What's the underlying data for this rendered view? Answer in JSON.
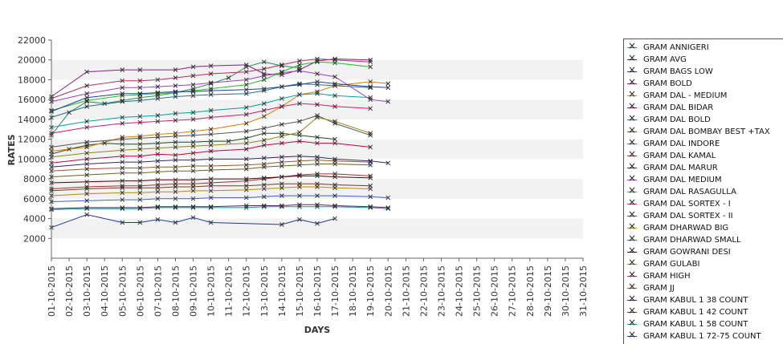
{
  "chart_data": {
    "type": "line",
    "xlabel": "DAYS",
    "ylabel": "RATES",
    "ylim": [
      0,
      22000
    ],
    "yticks": [
      2000,
      4000,
      6000,
      8000,
      10000,
      12000,
      14000,
      16000,
      18000,
      20000,
      22000
    ],
    "grid": "alternating horizontal bands",
    "legend_position": "right",
    "x": [
      "01-10-2015",
      "02-10-2015",
      "03-10-2015",
      "04-10-2015",
      "05-10-2015",
      "06-10-2015",
      "07-10-2015",
      "08-10-2015",
      "09-10-2015",
      "10-10-2015",
      "11-10-2015",
      "12-10-2015",
      "13-10-2015",
      "14-10-2015",
      "15-10-2015",
      "16-10-2015",
      "17-10-2015",
      "18-10-2015",
      "19-10-2015",
      "20-10-2015",
      "21-10-2015",
      "22-10-2015",
      "23-10-2015",
      "24-10-2015",
      "25-10-2015",
      "26-10-2015",
      "27-10-2015",
      "28-10-2015",
      "29-10-2015",
      "30-10-2015",
      "31-10-2015"
    ],
    "series": [
      {
        "name": "GRAM ANNIGERI",
        "color": "#2e8b57",
        "values": [
          12400,
          14700,
          15800,
          15600,
          15900,
          16200,
          16400,
          16700,
          17100,
          17600,
          18200,
          19300,
          19800,
          19400,
          19200,
          null,
          null,
          null,
          null,
          null,
          null,
          null,
          null,
          null,
          null,
          null,
          null,
          null,
          null,
          null,
          null
        ]
      },
      {
        "name": "GRAM AVG",
        "color": "#1b4d1b",
        "values": [
          10500,
          11000,
          11400,
          11600,
          11500,
          11500,
          11600,
          11700,
          11700,
          11800,
          11800,
          12100,
          12600,
          12600,
          12400,
          12200,
          12000,
          null,
          null,
          null,
          null,
          null,
          null,
          null,
          null,
          null,
          null,
          null,
          null,
          null,
          null
        ]
      },
      {
        "name": "GRAM BAGS LOW",
        "color": "#1f3b99",
        "values": [
          3100,
          null,
          4400,
          null,
          3600,
          3600,
          3900,
          3600,
          4100,
          3600,
          null,
          null,
          null,
          3400,
          3900,
          3500,
          4000,
          null,
          null,
          null,
          null,
          null,
          null,
          null,
          null,
          null,
          null,
          null,
          null,
          null,
          null
        ]
      },
      {
        "name": "GRAM BOLD",
        "color": "#8b1a8b",
        "values": [
          16300,
          null,
          18800,
          null,
          19000,
          19000,
          null,
          19000,
          19300,
          19400,
          null,
          19500,
          18600,
          18500,
          19000,
          19900,
          20100,
          null,
          20000,
          null,
          null,
          null,
          null,
          null,
          null,
          null,
          null,
          null,
          null,
          null,
          null
        ]
      },
      {
        "name": "GRAM DAL - MEDIUM",
        "color": "#e07a00",
        "values": [
          10800,
          null,
          11200,
          null,
          12200,
          12300,
          12500,
          12600,
          12800,
          13000,
          null,
          13600,
          14300,
          15300,
          16500,
          16800,
          17400,
          null,
          17800,
          17600,
          null,
          null,
          null,
          null,
          null,
          null,
          null,
          null,
          null,
          null,
          null
        ]
      },
      {
        "name": "GRAM DAL BIDAR",
        "color": "#c0003c",
        "values": [
          9600,
          null,
          10000,
          null,
          10300,
          10300,
          10500,
          10400,
          10600,
          10800,
          null,
          11000,
          11400,
          11600,
          11800,
          11600,
          11600,
          null,
          11200,
          null,
          null,
          null,
          null,
          null,
          null,
          null,
          null,
          null,
          null,
          null,
          null
        ]
      },
      {
        "name": "GRAM DAL BOLD",
        "color": "#1f6f8b",
        "values": [
          14200,
          null,
          15300,
          null,
          15800,
          15900,
          16100,
          16300,
          16400,
          16500,
          null,
          16600,
          16900,
          17300,
          17600,
          17500,
          17400,
          null,
          17200,
          null,
          null,
          null,
          null,
          null,
          null,
          null,
          null,
          null,
          null,
          null,
          null
        ]
      },
      {
        "name": "GRAM DAL BOMBAY BEST +TAX",
        "color": "#5a6b1a",
        "values": [
          8200,
          null,
          8400,
          null,
          8600,
          8600,
          8700,
          8800,
          8800,
          8900,
          null,
          9000,
          9200,
          9300,
          9400,
          9500,
          9500,
          null,
          9400,
          null,
          null,
          null,
          null,
          null,
          null,
          null,
          null,
          null,
          null,
          null,
          null
        ]
      },
      {
        "name": "GRAM DAL INDORE",
        "color": "#00a0a0",
        "values": [
          13200,
          null,
          13800,
          null,
          14200,
          14300,
          14400,
          14600,
          14700,
          14900,
          null,
          15200,
          15600,
          16100,
          16500,
          16600,
          16400,
          null,
          16200,
          null,
          null,
          null,
          null,
          null,
          null,
          null,
          null,
          null,
          null,
          null,
          null
        ]
      },
      {
        "name": "GRAM DAL KAMAL",
        "color": "#a0302a",
        "values": [
          7000,
          null,
          7200,
          null,
          7300,
          7300,
          7400,
          7500,
          7500,
          7600,
          null,
          7800,
          8000,
          8200,
          8400,
          8500,
          8500,
          null,
          8300,
          null,
          null,
          null,
          null,
          null,
          null,
          null,
          null,
          null,
          null,
          null,
          null
        ]
      },
      {
        "name": "GRAM DAL MARUR",
        "color": "#2a2a6a",
        "values": [
          9200,
          null,
          9500,
          null,
          9700,
          9700,
          9800,
          9900,
          9900,
          10000,
          null,
          10000,
          10100,
          10200,
          10300,
          10200,
          10000,
          null,
          9800,
          9600,
          null,
          null,
          null,
          null,
          null,
          null,
          null,
          null,
          null,
          null,
          null
        ]
      },
      {
        "name": "GRAM DAL MEDIUM",
        "color": "#9a3fbf",
        "values": [
          15800,
          null,
          16600,
          null,
          17200,
          17200,
          17300,
          17400,
          17500,
          17700,
          null,
          18000,
          18400,
          18700,
          18900,
          18600,
          18300,
          null,
          16000,
          15800,
          null,
          null,
          null,
          null,
          null,
          null,
          null,
          null,
          null,
          null,
          null
        ]
      },
      {
        "name": "GRAM DAL RASAGULLA",
        "color": "#22bb22",
        "values": [
          14900,
          null,
          15900,
          null,
          16400,
          16500,
          16600,
          16700,
          16900,
          17100,
          null,
          17500,
          18000,
          18800,
          19500,
          19800,
          19700,
          null,
          19300,
          null,
          null,
          null,
          null,
          null,
          null,
          null,
          null,
          null,
          null,
          null,
          null
        ]
      },
      {
        "name": "GRAM DAL SORTEX  - I",
        "color": "#d01a6a",
        "values": [
          12600,
          null,
          13200,
          null,
          13600,
          13700,
          13800,
          13900,
          14000,
          14200,
          null,
          14500,
          14900,
          15300,
          15600,
          15500,
          15300,
          null,
          15100,
          null,
          null,
          null,
          null,
          null,
          null,
          null,
          null,
          null,
          null,
          null,
          null
        ]
      },
      {
        "name": "GRAM DAL SORTEX - II",
        "color": "#555555",
        "values": [
          11200,
          null,
          11700,
          null,
          12000,
          12100,
          12200,
          12300,
          12400,
          12500,
          null,
          12800,
          13100,
          13500,
          13800,
          14400,
          13600,
          null,
          12400,
          null,
          null,
          null,
          null,
          null,
          null,
          null,
          null,
          null,
          null,
          null,
          null
        ]
      },
      {
        "name": "GRAM DHARWAD BIG",
        "color": "#b8860b",
        "values": [
          6300,
          null,
          6500,
          null,
          6600,
          6600,
          6700,
          6700,
          6800,
          6800,
          null,
          6900,
          7000,
          7100,
          7200,
          7200,
          7100,
          null,
          7000,
          null,
          null,
          null,
          null,
          null,
          null,
          null,
          null,
          null,
          null,
          null,
          null
        ]
      },
      {
        "name": "GRAM DHARWAD SMALL",
        "color": "#3f5fbf",
        "values": [
          5700,
          null,
          5800,
          null,
          5900,
          5900,
          6000,
          6000,
          6000,
          6100,
          null,
          6100,
          6200,
          6300,
          6300,
          6300,
          6300,
          null,
          6200,
          6100,
          null,
          null,
          null,
          null,
          null,
          null,
          null,
          null,
          null,
          null,
          null
        ]
      },
      {
        "name": "GRAM GOWRANI DESI",
        "color": "#4a0000",
        "values": [
          7600,
          null,
          7700,
          null,
          7800,
          7800,
          7900,
          7900,
          7900,
          8000,
          null,
          8000,
          8100,
          8200,
          8300,
          8300,
          8200,
          null,
          8100,
          null,
          null,
          null,
          null,
          null,
          null,
          null,
          null,
          null,
          null,
          null,
          null
        ]
      },
      {
        "name": "GRAM GULABI",
        "color": "#8a8a1a",
        "values": [
          10200,
          null,
          10600,
          null,
          10900,
          11000,
          11100,
          11200,
          11300,
          11400,
          null,
          11600,
          11900,
          12300,
          12700,
          14200,
          13800,
          null,
          12600,
          null,
          null,
          null,
          null,
          null,
          null,
          null,
          null,
          null,
          null,
          null,
          null
        ]
      },
      {
        "name": "GRAM HIGH",
        "color": "#b03060",
        "values": [
          16100,
          null,
          17400,
          null,
          17900,
          17900,
          18000,
          18200,
          18400,
          18600,
          null,
          18800,
          19100,
          19500,
          19900,
          20100,
          20000,
          null,
          19800,
          null,
          null,
          null,
          null,
          null,
          null,
          null,
          null,
          null,
          null,
          null,
          null
        ]
      },
      {
        "name": "GRAM JJ",
        "color": "#a0522d",
        "values": [
          8800,
          null,
          9000,
          null,
          9100,
          9100,
          9200,
          9200,
          9300,
          9300,
          null,
          9400,
          9500,
          9700,
          9800,
          9900,
          9800,
          null,
          9700,
          null,
          null,
          null,
          null,
          null,
          null,
          null,
          null,
          null,
          null,
          null,
          null
        ]
      },
      {
        "name": "GRAM KABUL 1 38 COUNT",
        "color": "#6a1a6a",
        "values": [
          5000,
          null,
          5100,
          null,
          5100,
          5100,
          5200,
          5200,
          5200,
          5200,
          null,
          5300,
          5300,
          5300,
          5400,
          5400,
          5300,
          null,
          5200,
          5100,
          null,
          null,
          null,
          null,
          null,
          null,
          null,
          null,
          null,
          null,
          null
        ]
      },
      {
        "name": "GRAM KABUL 1 42 COUNT",
        "color": "#7a3a1a",
        "values": [
          6800,
          null,
          7000,
          null,
          7100,
          7100,
          7100,
          7200,
          7200,
          7300,
          null,
          7300,
          7400,
          7500,
          7500,
          7500,
          7400,
          null,
          7300,
          null,
          null,
          null,
          null,
          null,
          null,
          null,
          null,
          null,
          null,
          null,
          null
        ]
      },
      {
        "name": "GRAM KABUL 1 58 COUNT",
        "color": "#00a090",
        "values": [
          4900,
          null,
          5000,
          null,
          5000,
          5000,
          5100,
          5100,
          5100,
          5100,
          null,
          5100,
          5200,
          5200,
          5200,
          5200,
          5200,
          null,
          5100,
          5000,
          null,
          null,
          null,
          null,
          null,
          null,
          null,
          null,
          null,
          null,
          null
        ]
      },
      {
        "name": "GRAM KABUL 1 72-75 COUNT",
        "color": "#1a3fa0",
        "values": [
          14800,
          null,
          16200,
          null,
          16600,
          16600,
          16700,
          16800,
          16800,
          16900,
          null,
          17000,
          17100,
          17300,
          17500,
          17800,
          17600,
          null,
          17300,
          17200,
          null,
          null,
          null,
          null,
          null,
          null,
          null,
          null,
          null,
          null,
          null
        ]
      }
    ]
  }
}
